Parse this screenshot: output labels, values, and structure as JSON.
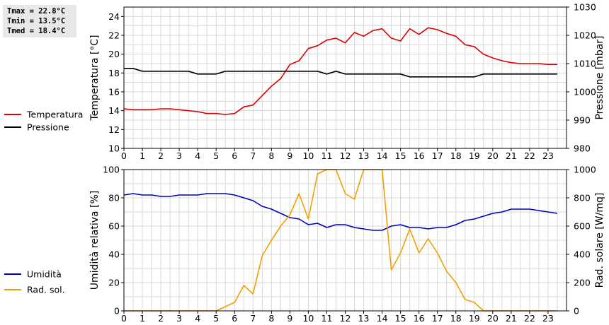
{
  "stats": {
    "tmax": "Tmax = 22.8°C",
    "tmin": "Tmin = 13.5°C",
    "tmed": "Tmed = 18.4°C"
  },
  "colors": {
    "temperatura": "#dd0000",
    "pressione": "#000000",
    "umidita": "#0000bb",
    "radsol": "#f0a000",
    "grid": "#d8d8d8"
  },
  "chart_data": [
    {
      "type": "line",
      "grid": true,
      "xlabel": "",
      "ylabel_left": "Temperatura [°C]",
      "ylabel_right": "Pressione [mbar]",
      "ylim_left": [
        10,
        25
      ],
      "ylim_right": [
        980,
        1030
      ],
      "xlim": [
        0,
        24
      ],
      "x_ticks": [
        "0",
        "1",
        "2",
        "3",
        "4",
        "5",
        "6",
        "7",
        "8",
        "9",
        "10",
        "11",
        "12",
        "13",
        "14",
        "15",
        "16",
        "17",
        "18",
        "19",
        "20",
        "21",
        "22",
        "23"
      ],
      "y_ticks_left": [
        "10",
        "12",
        "14",
        "16",
        "18",
        "20",
        "22",
        "24"
      ],
      "y_ticks_right": [
        "980",
        "990",
        "1000",
        "1010",
        "1020",
        "1030"
      ],
      "legend_position": "left",
      "x": [
        0,
        0.5,
        1,
        1.5,
        2,
        2.5,
        3,
        3.5,
        4,
        4.5,
        5,
        5.5,
        6,
        6.5,
        7,
        7.5,
        8,
        8.5,
        9,
        9.5,
        10,
        10.5,
        11,
        11.5,
        12,
        12.5,
        13,
        13.5,
        14,
        14.5,
        15,
        15.5,
        16,
        16.5,
        17,
        17.5,
        18,
        18.5,
        19,
        19.5,
        20,
        20.5,
        21,
        21.5,
        22,
        22.5,
        23,
        23.5
      ],
      "series": [
        {
          "name": "Temperatura",
          "axis": "left",
          "values": [
            14.2,
            14.1,
            14.1,
            14.1,
            14.2,
            14.2,
            14.1,
            14.0,
            13.9,
            13.7,
            13.7,
            13.6,
            13.7,
            14.4,
            14.6,
            15.6,
            16.6,
            17.4,
            18.9,
            19.3,
            20.6,
            20.9,
            21.5,
            21.7,
            21.2,
            22.3,
            21.9,
            22.5,
            22.7,
            21.7,
            21.4,
            22.7,
            22.1,
            22.8,
            22.6,
            22.2,
            21.9,
            21.0,
            20.8,
            20.0,
            19.6,
            19.3,
            19.1,
            19.0,
            19.0,
            19.0,
            18.9,
            18.9
          ]
        },
        {
          "name": "Pressione",
          "axis": "right",
          "values": [
            1008.3,
            1008.3,
            1007.3,
            1007.3,
            1007.3,
            1007.3,
            1007.3,
            1007.3,
            1006.3,
            1006.3,
            1006.3,
            1007.3,
            1007.3,
            1007.3,
            1007.3,
            1007.3,
            1007.3,
            1007.3,
            1007.3,
            1007.3,
            1007.3,
            1007.3,
            1006.3,
            1007.3,
            1006.3,
            1006.3,
            1006.3,
            1006.3,
            1006.3,
            1006.3,
            1006.3,
            1005.3,
            1005.3,
            1005.3,
            1005.3,
            1005.3,
            1005.3,
            1005.3,
            1005.3,
            1006.3,
            1006.3,
            1006.3,
            1006.3,
            1006.3,
            1006.3,
            1006.3,
            1006.3,
            1006.3
          ]
        }
      ]
    },
    {
      "type": "line",
      "grid": true,
      "xlabel": "",
      "ylabel_left": "Umidità relativa [%]",
      "ylabel_right": "Rad. solare [W/mq]",
      "ylim_left": [
        0,
        100
      ],
      "ylim_right": [
        0,
        1000
      ],
      "xlim": [
        0,
        24
      ],
      "x_ticks": [
        "0",
        "1",
        "2",
        "3",
        "4",
        "5",
        "6",
        "7",
        "8",
        "9",
        "10",
        "11",
        "12",
        "13",
        "14",
        "15",
        "16",
        "17",
        "18",
        "19",
        "20",
        "21",
        "22",
        "23"
      ],
      "y_ticks_left": [
        "0",
        "20",
        "40",
        "60",
        "80",
        "100"
      ],
      "y_ticks_right": [
        "0",
        "200",
        "400",
        "600",
        "800",
        "1000"
      ],
      "legend_position": "left",
      "x": [
        0,
        0.5,
        1,
        1.5,
        2,
        2.5,
        3,
        3.5,
        4,
        4.5,
        5,
        5.5,
        6,
        6.5,
        7,
        7.5,
        8,
        8.5,
        9,
        9.5,
        10,
        10.5,
        11,
        11.5,
        12,
        12.5,
        13,
        13.5,
        14,
        14.5,
        15,
        15.5,
        16,
        16.5,
        17,
        17.5,
        18,
        18.5,
        19,
        19.5,
        20,
        20.5,
        21,
        21.5,
        22,
        22.5,
        23,
        23.5
      ],
      "series": [
        {
          "name": "Umidità",
          "axis": "left",
          "values": [
            82,
            83,
            82,
            82,
            81,
            81,
            82,
            82,
            82,
            83,
            83,
            83,
            82,
            80,
            78,
            74,
            72,
            69,
            66,
            65,
            61,
            62,
            59,
            61,
            61,
            59,
            58,
            57,
            57,
            60,
            61,
            59,
            59,
            58,
            59,
            59,
            61,
            64,
            65,
            67,
            69,
            70,
            72,
            72,
            72,
            71,
            70,
            69
          ]
        },
        {
          "name": "Rad. sol.",
          "axis": "right",
          "values": [
            0,
            0,
            0,
            0,
            0,
            0,
            0,
            0,
            0,
            0,
            0,
            30,
            60,
            180,
            120,
            390,
            500,
            600,
            680,
            830,
            650,
            970,
            1000,
            1000,
            830,
            790,
            1000,
            1000,
            1000,
            290,
            410,
            580,
            410,
            510,
            410,
            280,
            200,
            80,
            60,
            0,
            0,
            0,
            0,
            0,
            0,
            0,
            0,
            0
          ]
        }
      ]
    }
  ]
}
